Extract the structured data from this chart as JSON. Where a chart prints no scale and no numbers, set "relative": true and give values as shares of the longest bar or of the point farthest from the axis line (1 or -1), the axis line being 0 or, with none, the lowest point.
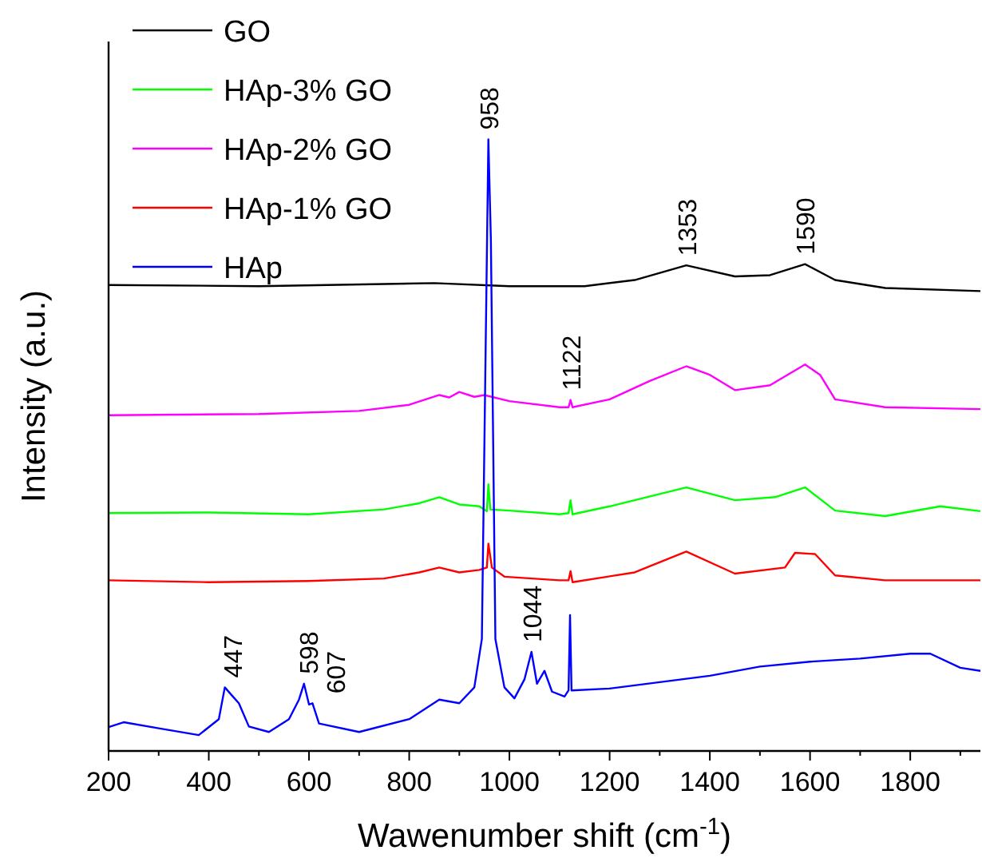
{
  "chart_data": {
    "type": "line",
    "relative": true,
    "xlabel": "Wawenumber shift (cm$^{-1}$)",
    "ylabel": "Intensity (a.u.)",
    "xlim": [
      200,
      1940
    ],
    "xticks": [
      200,
      400,
      600,
      800,
      1000,
      1200,
      1400,
      1600,
      1800
    ],
    "legend": "top left",
    "grid": false,
    "line_style": "solid",
    "series": [
      {
        "name": "GO",
        "color": "#000000",
        "x": [
          200,
          500,
          850,
          1000,
          1150,
          1250,
          1353,
          1450,
          1520,
          1590,
          1650,
          1750,
          1940
        ],
        "values": [
          0.762,
          0.76,
          0.765,
          0.76,
          0.76,
          0.77,
          0.794,
          0.776,
          0.778,
          0.796,
          0.77,
          0.757,
          0.752
        ]
      },
      {
        "name": "HAp-3% GO",
        "color": "#00ff00",
        "x": [
          200,
          400,
          600,
          750,
          820,
          860,
          900,
          940,
          955,
          958,
          962,
          1000,
          1100,
          1118,
          1122,
          1126,
          1200,
          1353,
          1450,
          1530,
          1590,
          1650,
          1750,
          1860,
          1940
        ],
        "values": [
          0.389,
          0.39,
          0.387,
          0.395,
          0.405,
          0.415,
          0.403,
          0.4,
          0.392,
          0.436,
          0.395,
          0.393,
          0.387,
          0.389,
          0.41,
          0.387,
          0.4,
          0.431,
          0.41,
          0.415,
          0.431,
          0.393,
          0.384,
          0.4,
          0.392
        ]
      },
      {
        "name": "HAp-2% GO",
        "color": "#ff00ff",
        "x": [
          200,
          500,
          700,
          800,
          860,
          880,
          900,
          930,
          950,
          1000,
          1100,
          1118,
          1122,
          1126,
          1200,
          1280,
          1353,
          1400,
          1450,
          1520,
          1590,
          1620,
          1650,
          1750,
          1940
        ],
        "values": [
          0.549,
          0.551,
          0.556,
          0.566,
          0.582,
          0.578,
          0.587,
          0.579,
          0.582,
          0.572,
          0.562,
          0.562,
          0.574,
          0.562,
          0.575,
          0.605,
          0.629,
          0.615,
          0.59,
          0.598,
          0.632,
          0.615,
          0.575,
          0.562,
          0.559
        ]
      },
      {
        "name": "HAp-1% GO",
        "color": "#ff0000",
        "x": [
          200,
          400,
          600,
          750,
          820,
          860,
          900,
          940,
          955,
          958,
          965,
          990,
          1100,
          1118,
          1122,
          1126,
          1250,
          1353,
          1450,
          1550,
          1570,
          1610,
          1650,
          1750,
          1940
        ],
        "values": [
          0.279,
          0.276,
          0.278,
          0.282,
          0.292,
          0.3,
          0.292,
          0.296,
          0.3,
          0.339,
          0.3,
          0.285,
          0.279,
          0.279,
          0.294,
          0.276,
          0.292,
          0.326,
          0.29,
          0.3,
          0.324,
          0.322,
          0.287,
          0.279,
          0.279
        ]
      },
      {
        "name": "HAp",
        "color": "#0000ff",
        "x": [
          200,
          230,
          300,
          380,
          420,
          432,
          447,
          460,
          480,
          520,
          560,
          580,
          590,
          600,
          607,
          620,
          700,
          800,
          860,
          900,
          930,
          945,
          958,
          963,
          972,
          990,
          1010,
          1030,
          1044,
          1055,
          1070,
          1085,
          1110,
          1118,
          1121,
          1124,
          1200,
          1400,
          1500,
          1600,
          1700,
          1800,
          1840,
          1900,
          1940
        ],
        "values": [
          0.039,
          0.047,
          0.037,
          0.026,
          0.052,
          0.104,
          0.09,
          0.078,
          0.04,
          0.031,
          0.052,
          0.084,
          0.11,
          0.076,
          0.078,
          0.045,
          0.031,
          0.052,
          0.084,
          0.078,
          0.104,
          0.183,
          1.0,
          0.836,
          0.183,
          0.104,
          0.086,
          0.117,
          0.162,
          0.11,
          0.131,
          0.097,
          0.089,
          0.099,
          0.222,
          0.099,
          0.102,
          0.123,
          0.138,
          0.146,
          0.151,
          0.159,
          0.159,
          0.136,
          0.131
        ]
      }
    ],
    "annotations": [
      {
        "text": "958",
        "x": 958,
        "y": 1.0
      },
      {
        "text": "1353",
        "x": 1353,
        "y": 0.794
      },
      {
        "text": "1590",
        "x": 1590,
        "y": 0.796
      },
      {
        "text": "1122",
        "x": 1122,
        "y": 0.574
      },
      {
        "text": "447",
        "x": 447,
        "y": 0.104
      },
      {
        "text": "598",
        "x": 598,
        "y": 0.11
      },
      {
        "text": "607",
        "x": 607,
        "y": 0.078
      },
      {
        "text": "1044",
        "x": 1044,
        "y": 0.162
      }
    ]
  }
}
